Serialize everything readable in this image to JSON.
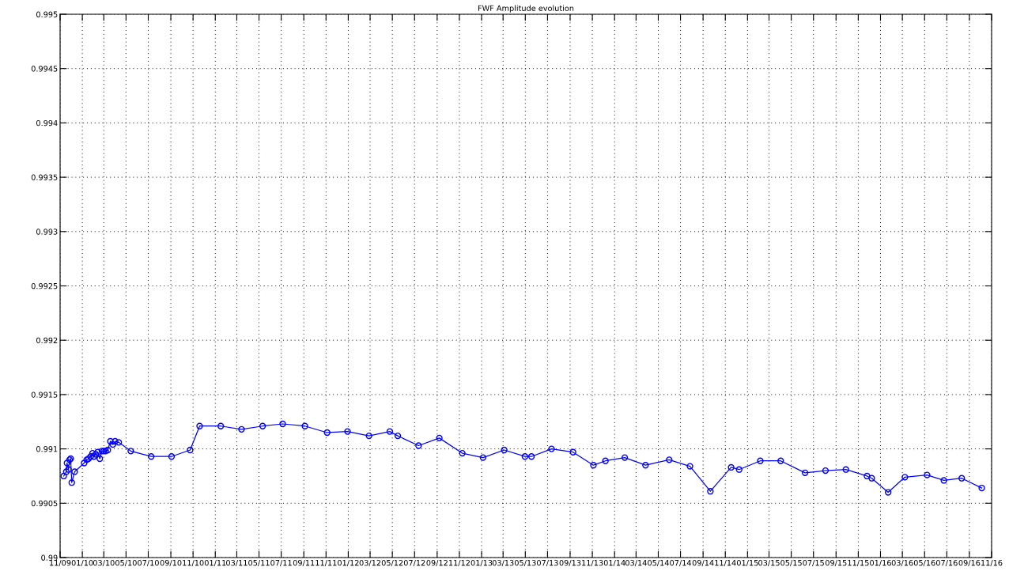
{
  "chart_data": {
    "type": "line",
    "title": "FWF Amplitude evolution",
    "x": [
      "2009-11-11",
      "2009-11-18",
      "2009-11-20",
      "2009-11-24",
      "2009-11-27",
      "2009-11-30",
      "2009-12-03",
      "2009-12-11",
      "2010-01-06",
      "2010-01-13",
      "2010-01-18",
      "2010-01-24",
      "2010-01-29",
      "2010-02-02",
      "2010-02-07",
      "2010-02-12",
      "2010-02-18",
      "2010-02-24",
      "2010-03-01",
      "2010-03-06",
      "2010-03-12",
      "2010-03-19",
      "2010-03-26",
      "2010-04-01",
      "2010-04-11",
      "2010-05-14",
      "2010-07-09",
      "2010-09-03",
      "2010-10-24",
      "2010-11-19",
      "2011-01-16",
      "2011-03-14",
      "2011-05-11",
      "2011-07-05",
      "2011-09-04",
      "2011-11-04",
      "2011-12-30",
      "2012-02-27",
      "2012-04-24",
      "2012-05-16",
      "2012-07-12",
      "2012-09-07",
      "2012-11-09",
      "2013-01-05",
      "2013-03-04",
      "2013-04-30",
      "2013-05-18",
      "2013-07-12",
      "2013-09-09",
      "2013-11-04",
      "2013-12-07",
      "2014-01-29",
      "2014-03-27",
      "2014-05-31",
      "2014-07-27",
      "2014-09-21",
      "2014-11-17",
      "2014-12-09",
      "2015-02-05",
      "2015-04-02",
      "2015-06-08",
      "2015-08-03",
      "2015-09-28",
      "2015-11-25",
      "2015-12-08",
      "2016-01-22",
      "2016-03-08",
      "2016-05-08",
      "2016-06-23",
      "2016-08-11",
      "2016-10-05"
    ],
    "series": [
      {
        "color": "#0000ff",
        "values": [
          0.99075,
          0.99079,
          0.99087,
          0.99081,
          0.9909,
          0.99091,
          0.99069,
          0.99079,
          0.99087,
          0.9909,
          0.99091,
          0.99093,
          0.99096,
          0.99093,
          0.99095,
          0.99097,
          0.99091,
          0.99098,
          0.99098,
          0.99098,
          0.99099,
          0.99107,
          0.99104,
          0.99107,
          0.99106,
          0.99098,
          0.99093,
          0.99093,
          0.99099,
          0.99121,
          0.99121,
          0.99118,
          0.99121,
          0.99123,
          0.99121,
          0.99115,
          0.99116,
          0.99112,
          0.99116,
          0.99112,
          0.99103,
          0.9911,
          0.99096,
          0.99092,
          0.99099,
          0.99093,
          0.99093,
          0.991,
          0.99097,
          0.99085,
          0.99089,
          0.99092,
          0.99085,
          0.9909,
          0.99084,
          0.99061,
          0.99083,
          0.99081,
          0.99089,
          0.99089,
          0.99078,
          0.9908,
          0.99081,
          0.99075,
          0.99073,
          0.9906,
          0.99074,
          0.99076,
          0.99071,
          0.99073,
          0.99064
        ]
      }
    ],
    "xlim": [
      "2009-11-01",
      "2016-11-01"
    ],
    "xticks": [
      {
        "value": "2009-11-01",
        "label": "11/09"
      },
      {
        "value": "2010-01-01",
        "label": "01/10"
      },
      {
        "value": "2010-03-01",
        "label": "03/10"
      },
      {
        "value": "2010-05-01",
        "label": "05/10"
      },
      {
        "value": "2010-07-01",
        "label": "07/10"
      },
      {
        "value": "2010-09-01",
        "label": "09/10"
      },
      {
        "value": "2010-11-01",
        "label": "11/10"
      },
      {
        "value": "2011-01-01",
        "label": "01/11"
      },
      {
        "value": "2011-03-01",
        "label": "03/11"
      },
      {
        "value": "2011-05-01",
        "label": "05/11"
      },
      {
        "value": "2011-07-01",
        "label": "07/11"
      },
      {
        "value": "2011-09-01",
        "label": "09/11"
      },
      {
        "value": "2011-11-01",
        "label": "11/11"
      },
      {
        "value": "2012-01-01",
        "label": "01/12"
      },
      {
        "value": "2012-03-01",
        "label": "03/12"
      },
      {
        "value": "2012-05-01",
        "label": "05/12"
      },
      {
        "value": "2012-07-01",
        "label": "07/12"
      },
      {
        "value": "2012-09-01",
        "label": "09/12"
      },
      {
        "value": "2012-11-01",
        "label": "11/12"
      },
      {
        "value": "2013-01-01",
        "label": "01/13"
      },
      {
        "value": "2013-03-01",
        "label": "03/13"
      },
      {
        "value": "2013-05-01",
        "label": "05/13"
      },
      {
        "value": "2013-07-01",
        "label": "07/13"
      },
      {
        "value": "2013-09-01",
        "label": "09/13"
      },
      {
        "value": "2013-11-01",
        "label": "11/13"
      },
      {
        "value": "2014-01-01",
        "label": "01/14"
      },
      {
        "value": "2014-03-01",
        "label": "03/14"
      },
      {
        "value": "2014-05-01",
        "label": "05/14"
      },
      {
        "value": "2014-07-01",
        "label": "07/14"
      },
      {
        "value": "2014-09-01",
        "label": "09/14"
      },
      {
        "value": "2014-11-01",
        "label": "11/14"
      },
      {
        "value": "2015-01-01",
        "label": "01/15"
      },
      {
        "value": "2015-03-01",
        "label": "03/15"
      },
      {
        "value": "2015-05-01",
        "label": "05/15"
      },
      {
        "value": "2015-07-01",
        "label": "07/15"
      },
      {
        "value": "2015-09-01",
        "label": "09/15"
      },
      {
        "value": "2015-11-01",
        "label": "11/15"
      },
      {
        "value": "2016-01-01",
        "label": "01/16"
      },
      {
        "value": "2016-03-01",
        "label": "03/16"
      },
      {
        "value": "2016-05-01",
        "label": "05/16"
      },
      {
        "value": "2016-07-01",
        "label": "07/16"
      },
      {
        "value": "2016-09-01",
        "label": "09/16"
      },
      {
        "value": "2016-11-01",
        "label": "11/16"
      }
    ],
    "ylim": [
      0.99,
      0.995
    ],
    "yticks": [
      0.99,
      0.9905,
      0.991,
      0.9915,
      0.992,
      0.9925,
      0.993,
      0.9935,
      0.994,
      0.9945,
      0.995
    ],
    "grid": true,
    "marker": "circle",
    "line_style": "solid"
  }
}
